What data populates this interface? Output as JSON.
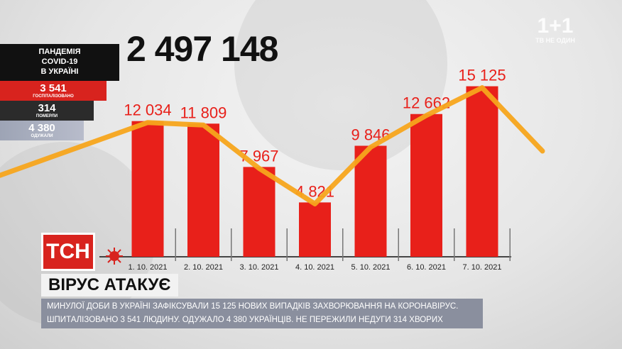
{
  "sidebar": {
    "title_lines": [
      "ПАНДЕМІЯ",
      "COVID-19",
      "В УКРАЇНІ"
    ],
    "hospitalized": {
      "value": "3 541",
      "label": "ГОСПІТАЛІЗОВАНО"
    },
    "died": {
      "value": "314",
      "label": "ПОМЕРЛИ"
    },
    "recovered": {
      "value": "4 380",
      "label": "ОДУЖАЛИ"
    }
  },
  "total_cases": "2 497 148",
  "logo": {
    "main": "1+1",
    "sub": "ТВ НЕ ОДИН"
  },
  "tsn_logo": "ТСН",
  "headline": "ВІРУС АТАКУЄ",
  "caption": "МИНУЛОЇ ДОБИ В УКРАЇНІ ЗАФІКСУВАЛИ 15 125 НОВИХ ВИПАДКІВ ЗАХВОРЮВАННЯ НА КОРОНАВІРУС. ШПИТАЛІЗОВАНО 3 541 ЛЮДИНУ. ОДУЖАЛО 4 380 УКРАЇНЦІВ. НЕ ПЕРЕЖИЛИ НЕДУГИ 314 ХВОРИХ",
  "colors": {
    "bar": "#e8201a",
    "line": "#f7a51c",
    "accent": "#d8231e"
  },
  "chart_data": {
    "type": "bar",
    "categories": [
      "1. 10. 2021",
      "2. 10. 2021",
      "3. 10. 2021",
      "4. 10. 2021",
      "5. 10. 2021",
      "6. 10. 2021",
      "7. 10. 2021"
    ],
    "values": [
      12034,
      11809,
      7967,
      4821,
      9846,
      12662,
      15125
    ],
    "value_labels": [
      "12 034",
      "11 809",
      "7 967",
      "4 821",
      "9 846",
      "12 662",
      "15 125"
    ],
    "ylim": [
      0,
      19000
    ],
    "grid": false,
    "overlay": "line"
  }
}
